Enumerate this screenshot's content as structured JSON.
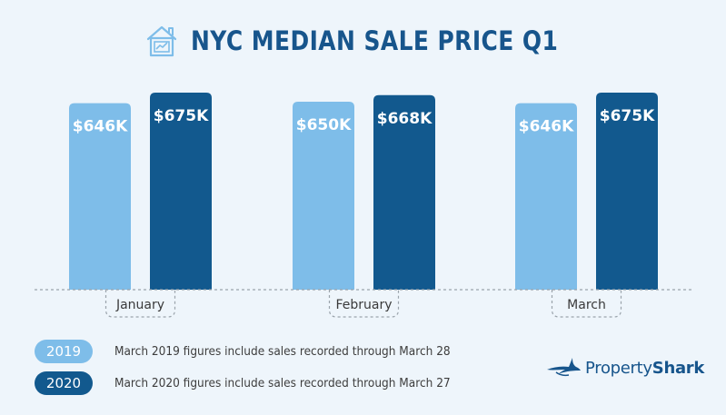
{
  "header": {
    "title": "NYC MEDIAN SALE PRICE Q1",
    "icon": "house-chart-icon"
  },
  "colors": {
    "series_2019": "#7ebde9",
    "series_2020": "#12598e",
    "title": "#17558c",
    "baseline": "#9aa3ab"
  },
  "chart_data": {
    "type": "bar",
    "title": "NYC MEDIAN SALE PRICE Q1",
    "categories": [
      "January",
      "February",
      "March"
    ],
    "series": [
      {
        "name": "2019",
        "values": [
          646,
          650,
          646
        ],
        "labels": [
          "$646K",
          "$650K",
          "$646K"
        ]
      },
      {
        "name": "2020",
        "values": [
          675,
          668,
          675
        ],
        "labels": [
          "$675K",
          "$668K",
          "$675K"
        ]
      }
    ],
    "unit": "K USD",
    "grid": false,
    "legend": "bottom-left"
  },
  "legend": [
    {
      "year": "2019",
      "note": "March 2019 figures include sales recorded through March 28"
    },
    {
      "year": "2020",
      "note": "March 2020 figures include sales recorded through March 27"
    }
  ],
  "brand": {
    "prefix": "Property",
    "suffix": "Shark",
    "icon": "shark-fin-icon"
  }
}
